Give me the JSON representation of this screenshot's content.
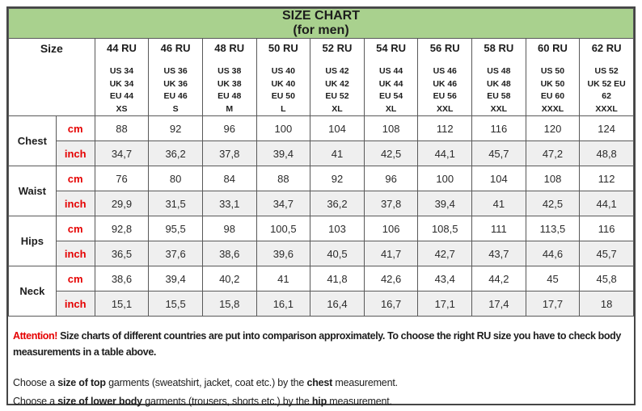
{
  "title": {
    "line1": "SIZE CHART",
    "line2": "(for men)"
  },
  "size_label": "Size",
  "units": {
    "cm": "cm",
    "inch": "inch"
  },
  "columns": [
    {
      "ru": "44 RU",
      "intl": "US 34\nUK 34\nEU 44\nXS"
    },
    {
      "ru": "46 RU",
      "intl": "US 36\nUK 36\nEU 46\nS"
    },
    {
      "ru": "48 RU",
      "intl": "US 38\nUK 38\nEU 48\nM"
    },
    {
      "ru": "50 RU",
      "intl": "US 40\nUK 40\nEU 50\nL"
    },
    {
      "ru": "52 RU",
      "intl": "US 42\nUK 42\nEU 52\nXL"
    },
    {
      "ru": "54 RU",
      "intl": "US 44\nUK 44\nEU 54\nXL"
    },
    {
      "ru": "56 RU",
      "intl": "US 46\nUK 46\nEU 56\nXXL"
    },
    {
      "ru": "58 RU",
      "intl": "US 48\nUK 48\nEU 58\nXXL"
    },
    {
      "ru": "60 RU",
      "intl": "US 50\nUK 50\nEU 60\nXXXL"
    },
    {
      "ru": "62 RU",
      "intl": "US 52\nUK 52 EU\n62\nXXXL"
    }
  ],
  "measurements": [
    {
      "label": "Chest",
      "cm": [
        "88",
        "92",
        "96",
        "100",
        "104",
        "108",
        "112",
        "116",
        "120",
        "124"
      ],
      "inch": [
        "34,7",
        "36,2",
        "37,8",
        "39,4",
        "41",
        "42,5",
        "44,1",
        "45,7",
        "47,2",
        "48,8"
      ]
    },
    {
      "label": "Waist",
      "cm": [
        "76",
        "80",
        "84",
        "88",
        "92",
        "96",
        "100",
        "104",
        "108",
        "112"
      ],
      "inch": [
        "29,9",
        "31,5",
        "33,1",
        "34,7",
        "36,2",
        "37,8",
        "39,4",
        "41",
        "42,5",
        "44,1"
      ]
    },
    {
      "label": "Hips",
      "cm": [
        "92,8",
        "95,5",
        "98",
        "100,5",
        "103",
        "106",
        "108,5",
        "111",
        "113,5",
        "116"
      ],
      "inch": [
        "36,5",
        "37,6",
        "38,6",
        "39,6",
        "40,5",
        "41,7",
        "42,7",
        "43,7",
        "44,6",
        "45,7"
      ]
    },
    {
      "label": "Neck",
      "cm": [
        "38,6",
        "39,4",
        "40,2",
        "41",
        "41,8",
        "42,6",
        "43,4",
        "44,2",
        "45",
        "45,8"
      ],
      "inch": [
        "15,1",
        "15,5",
        "15,8",
        "16,1",
        "16,4",
        "16,7",
        "17,1",
        "17,4",
        "17,7",
        "18"
      ]
    }
  ],
  "footer": {
    "attention_label": "Attention!",
    "attention_rest": " Size charts of different countries are put into comparison approximately. To choose the right RU size you have to check body measurements in a table above.",
    "top": [
      "Choose a ",
      "size of top",
      " garments (sweatshirt, jacket, coat etc.) by the ",
      "chest",
      " measurement."
    ],
    "lower": [
      "Choose a ",
      "size of lower body",
      " garments (trousers, shorts etc.) by the ",
      "hip",
      " measurement."
    ]
  },
  "colors": {
    "header_green": "#a9d18e",
    "alt_row_gray": "#efefef",
    "accent_red": "#e50000",
    "border_gray": "#595959"
  }
}
